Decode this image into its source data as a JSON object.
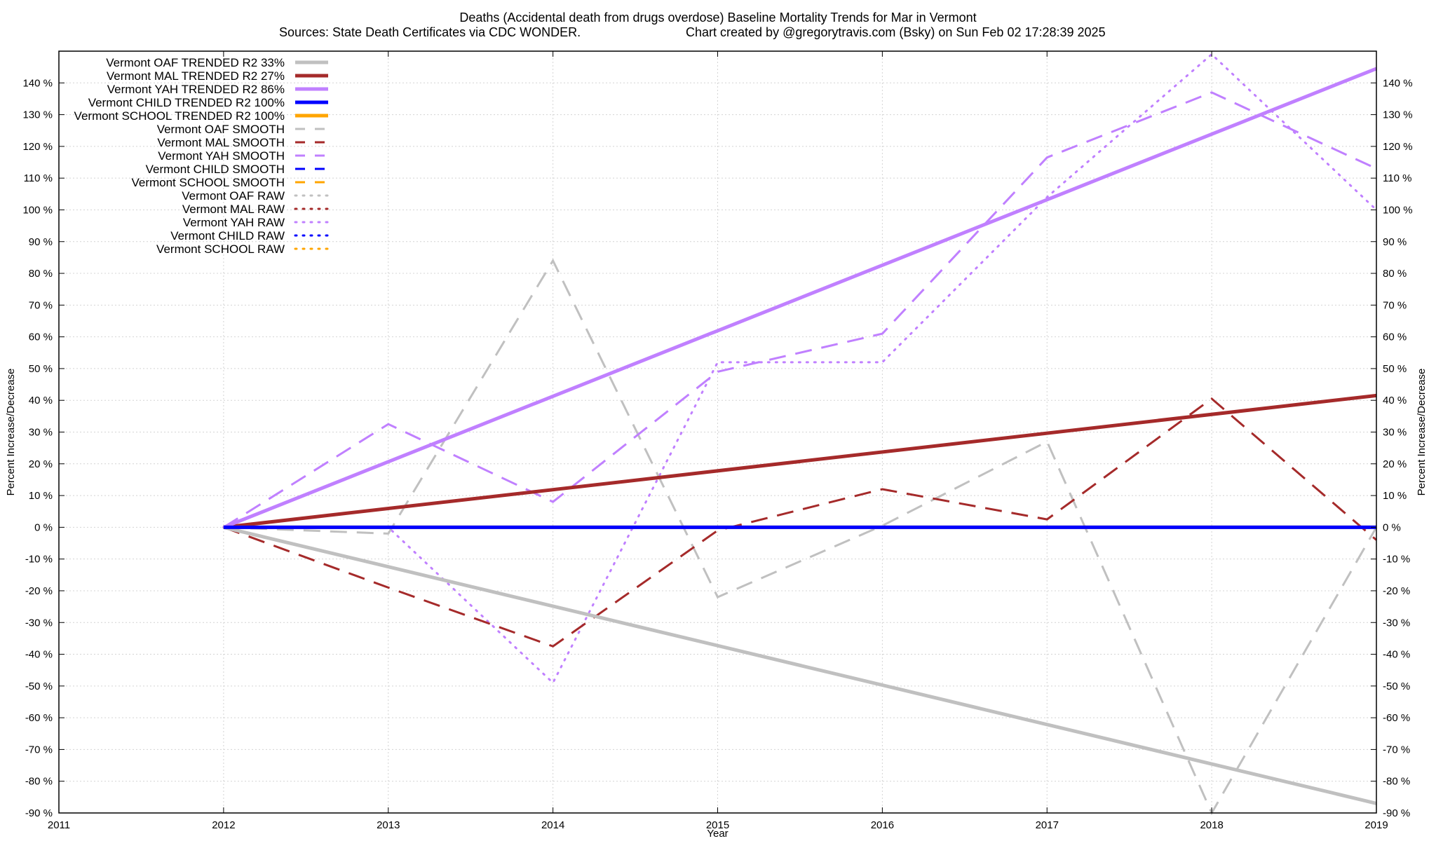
{
  "chart_data": {
    "type": "line",
    "title": "Deaths (Accidental death from drugs overdose)  Baseline Mortality Trends for Mar in Vermont",
    "subtitle_left": "Sources: State Death Certificates via CDC WONDER.",
    "subtitle_right": "Chart created by @gregorytravis.com (Bsky) on Sun Feb 02 17:28:39 2025",
    "xlabel": "Year",
    "ylabel_left": "Percent Increase/Decrease",
    "ylabel_right": "Percent Increase/Decrease",
    "xlim": [
      2011,
      2019
    ],
    "ylim": [
      -90,
      150
    ],
    "x_ticks": [
      2011,
      2012,
      2013,
      2014,
      2015,
      2016,
      2017,
      2018,
      2019
    ],
    "y_ticks": [
      -90,
      -80,
      -70,
      -60,
      -50,
      -40,
      -30,
      -20,
      -10,
      0,
      10,
      20,
      30,
      40,
      50,
      60,
      70,
      80,
      90,
      100,
      110,
      120,
      130,
      140
    ],
    "y_tick_suffix": " %",
    "grid": true,
    "legend_position": "top-left",
    "series": [
      {
        "name": "Vermont OAF TRENDED R2  33%",
        "style": "solid",
        "color": "#c0c0c0",
        "x": [
          2012,
          2019
        ],
        "y": [
          0,
          -87
        ]
      },
      {
        "name": "Vermont MAL TRENDED R2  27%",
        "style": "solid",
        "color": "#a52a2a",
        "x": [
          2012,
          2019
        ],
        "y": [
          0,
          41.5
        ]
      },
      {
        "name": "Vermont YAH TRENDED R2  86%",
        "style": "solid",
        "color": "#c080ff",
        "x": [
          2012,
          2019
        ],
        "y": [
          0,
          144.5
        ]
      },
      {
        "name": "Vermont CHILD TRENDED R2 100%",
        "style": "solid",
        "color": "#0000ff",
        "x": [
          2012,
          2019
        ],
        "y": [
          0,
          0
        ]
      },
      {
        "name": "Vermont SCHOOL TRENDED R2 100%",
        "style": "solid",
        "color": "#ffa500",
        "x": [
          2012,
          2019
        ],
        "y": [
          0,
          0
        ]
      },
      {
        "name": "Vermont OAF SMOOTH",
        "style": "dashed",
        "color": "#c0c0c0",
        "x": [
          2012,
          2013,
          2014,
          2015,
          2016,
          2017,
          2018,
          2019
        ],
        "y": [
          0,
          -2,
          84,
          -22,
          0.5,
          27,
          -90,
          0
        ]
      },
      {
        "name": "Vermont MAL SMOOTH",
        "style": "dashed",
        "color": "#a52a2a",
        "x": [
          2012,
          2013,
          2014,
          2015,
          2016,
          2017,
          2018,
          2019
        ],
        "y": [
          0,
          -19,
          -37.5,
          -1,
          12,
          2.5,
          40.5,
          -4
        ]
      },
      {
        "name": "Vermont YAH SMOOTH",
        "style": "dashed",
        "color": "#c080ff",
        "x": [
          2012,
          2013,
          2014,
          2015,
          2016,
          2017,
          2018,
          2019
        ],
        "y": [
          0,
          32.5,
          8,
          49,
          61,
          116.5,
          137,
          113
        ]
      },
      {
        "name": "Vermont CHILD SMOOTH",
        "style": "dashed",
        "color": "#0000ff",
        "x": [
          2012,
          2019
        ],
        "y": [
          0,
          0
        ]
      },
      {
        "name": "Vermont SCHOOL SMOOTH",
        "style": "dashed",
        "color": "#ffa500",
        "x": [
          2012,
          2019
        ],
        "y": [
          0,
          0
        ]
      },
      {
        "name": "Vermont OAF RAW",
        "style": "dotted",
        "color": "#c0c0c0",
        "x": [
          2012,
          2019
        ],
        "y": [
          0,
          0
        ]
      },
      {
        "name": "Vermont MAL RAW",
        "style": "dotted",
        "color": "#a52a2a",
        "x": [
          2012,
          2019
        ],
        "y": [
          0,
          0
        ]
      },
      {
        "name": "Vermont YAH RAW",
        "style": "dotted",
        "color": "#c080ff",
        "x": [
          2012,
          2013,
          2014,
          2015,
          2016,
          2017,
          2018,
          2019
        ],
        "y": [
          0,
          0,
          -49,
          52,
          52,
          104,
          149,
          100
        ]
      },
      {
        "name": "Vermont CHILD RAW",
        "style": "dotted",
        "color": "#0000ff",
        "x": [
          2012,
          2019
        ],
        "y": [
          0,
          0
        ]
      },
      {
        "name": "Vermont SCHOOL RAW",
        "style": "dotted",
        "color": "#ffa500",
        "x": [
          2012,
          2019
        ],
        "y": [
          0,
          0
        ]
      }
    ]
  }
}
